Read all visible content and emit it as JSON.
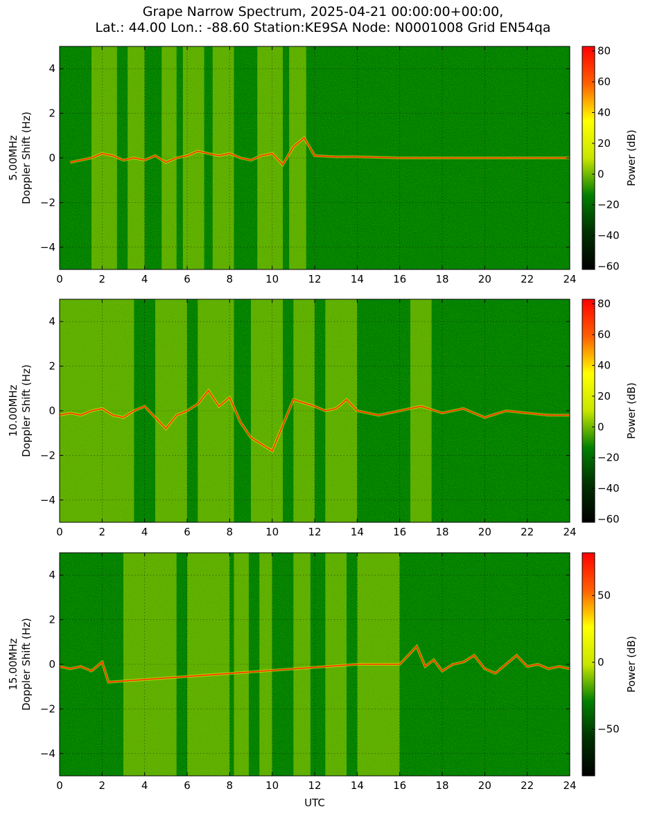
{
  "title_lines": [
    "Grape Narrow Spectrum, 2025-04-21 00:00:00+00:00,",
    "Lat.: 44.00 Lon.: -88.60 Station:KE9SA Node: N0001008 Grid EN54qa"
  ],
  "colors": {
    "background": "#008000",
    "trace": "#ff3000",
    "colormap": [
      "#000000",
      "#003000",
      "#008000",
      "#c8e600",
      "#ffff00",
      "#ff6000",
      "#ff0000"
    ]
  },
  "chart_data": [
    {
      "type": "heatmap",
      "ylabel_line1": "5.00MHz",
      "ylabel_line2": "Doppler Shift (Hz)",
      "xlabel": "",
      "xlim": [
        0,
        24
      ],
      "ylim": [
        -5,
        5
      ],
      "xticks": [
        "0",
        "2",
        "4",
        "6",
        "8",
        "10",
        "12",
        "14",
        "16",
        "18",
        "20",
        "22",
        "24"
      ],
      "yticks": [
        "4",
        "2",
        "0",
        "−2",
        "−4"
      ],
      "colorbar": {
        "label": "Power (dB)",
        "range": [
          -62,
          83
        ],
        "ticks": [
          "80",
          "60",
          "40",
          "20",
          "0",
          "−20",
          "−40",
          "−60"
        ]
      },
      "grid": true,
      "doppler_trace": {
        "x": [
          0.5,
          1,
          1.5,
          2,
          2.5,
          3,
          3.5,
          4,
          4.5,
          5,
          5.5,
          6,
          6.5,
          7,
          7.5,
          8,
          8.5,
          9,
          9.5,
          10,
          10.5,
          11,
          11.5,
          12,
          13,
          14,
          16,
          18,
          20,
          22,
          24
        ],
        "y": [
          -0.2,
          -0.1,
          0,
          0.2,
          0.1,
          -0.1,
          0,
          -0.1,
          0.1,
          -0.2,
          0,
          0.1,
          0.3,
          0.2,
          0.1,
          0.2,
          0,
          -0.1,
          0.1,
          0.2,
          -0.3,
          0.5,
          0.9,
          0.1,
          0.05,
          0.05,
          0,
          0,
          0,
          0,
          0
        ]
      },
      "bright_bands": [
        [
          1.5,
          2.7
        ],
        [
          3.2,
          4.0
        ],
        [
          4.8,
          5.5
        ],
        [
          5.8,
          6.8
        ],
        [
          7.2,
          8.2
        ],
        [
          9.3,
          10.5
        ],
        [
          10.8,
          11.6
        ]
      ]
    },
    {
      "type": "heatmap",
      "ylabel_line1": "10.00MHz",
      "ylabel_line2": "Doppler Shift (Hz)",
      "xlabel": "",
      "xlim": [
        0,
        24
      ],
      "ylim": [
        -5,
        5
      ],
      "xticks": [
        "0",
        "2",
        "4",
        "6",
        "8",
        "10",
        "12",
        "14",
        "16",
        "18",
        "20",
        "22",
        "24"
      ],
      "yticks": [
        "4",
        "2",
        "0",
        "−2",
        "−4"
      ],
      "colorbar": {
        "label": "Power (dB)",
        "range": [
          -62,
          83
        ],
        "ticks": [
          "80",
          "60",
          "40",
          "20",
          "0",
          "−20",
          "−40",
          "−60"
        ]
      },
      "grid": true,
      "doppler_trace": {
        "x": [
          0,
          0.5,
          1,
          1.5,
          2,
          2.5,
          3,
          3.5,
          4,
          4.5,
          5,
          5.5,
          6,
          6.5,
          7,
          7.5,
          8,
          8.5,
          9,
          10,
          11,
          12,
          12.5,
          13,
          13.5,
          14,
          15,
          16,
          17,
          18,
          19,
          20,
          21,
          22,
          23,
          24
        ],
        "y": [
          -0.2,
          -0.1,
          -0.2,
          0,
          0.1,
          -0.2,
          -0.3,
          0,
          0.2,
          -0.3,
          -0.8,
          -0.2,
          0,
          0.3,
          0.9,
          0.2,
          0.6,
          -0.5,
          -1.2,
          -1.8,
          0.5,
          0.2,
          0,
          0.1,
          0.5,
          0,
          -0.2,
          0,
          0.2,
          -0.1,
          0.1,
          -0.3,
          0,
          -0.1,
          -0.2,
          -0.2
        ]
      },
      "bright_bands": [
        [
          0,
          2
        ],
        [
          2,
          3.5
        ],
        [
          4.5,
          6
        ],
        [
          6.5,
          8.2
        ],
        [
          9,
          10.5
        ],
        [
          11,
          12
        ],
        [
          12.5,
          14
        ],
        [
          16.5,
          17.5
        ]
      ]
    },
    {
      "type": "heatmap",
      "ylabel_line1": "15.00MHz",
      "ylabel_line2": "Doppler Shift (Hz)",
      "xlabel": "UTC",
      "xlim": [
        0,
        24
      ],
      "ylim": [
        -5,
        5
      ],
      "xticks": [
        "0",
        "2",
        "4",
        "6",
        "8",
        "10",
        "12",
        "14",
        "16",
        "18",
        "20",
        "22",
        "24"
      ],
      "yticks": [
        "4",
        "2",
        "0",
        "−2",
        "−4"
      ],
      "colorbar": {
        "label": "Power (dB)",
        "range": [
          -85,
          82
        ],
        "ticks": [
          "50",
          "0",
          "−50"
        ]
      },
      "grid": true,
      "doppler_trace": {
        "x": [
          0,
          0.5,
          1,
          1.5,
          2,
          2.3,
          14,
          15,
          16,
          16.8,
          17.2,
          17.6,
          18,
          18.5,
          19,
          19.5,
          20,
          20.5,
          21,
          21.5,
          22,
          22.5,
          23,
          23.5,
          24
        ],
        "y": [
          -0.1,
          -0.2,
          -0.1,
          -0.3,
          0.1,
          -0.8,
          0,
          0,
          0,
          0.8,
          -0.1,
          0.2,
          -0.3,
          0,
          0.1,
          0.4,
          -0.2,
          -0.4,
          0,
          0.4,
          -0.1,
          0,
          -0.2,
          -0.1,
          -0.2
        ]
      },
      "bright_bands": [
        [
          3,
          5.5
        ],
        [
          6,
          8
        ],
        [
          8.2,
          8.9
        ],
        [
          9.4,
          10
        ],
        [
          11,
          11.8
        ],
        [
          12.5,
          13.5
        ],
        [
          14,
          16
        ]
      ]
    }
  ]
}
